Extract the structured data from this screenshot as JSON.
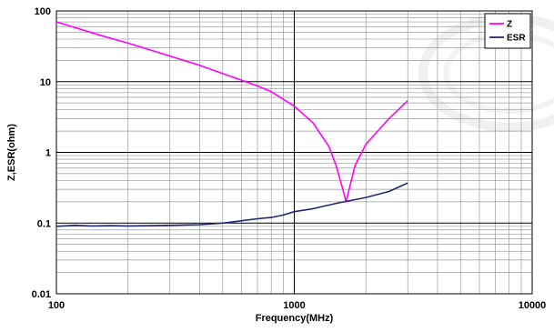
{
  "chart_data": {
    "type": "line",
    "title": "",
    "xlabel": "Frequency(MHz)",
    "ylabel": "Z,ESR(ohm)",
    "x_scale": "log",
    "y_scale": "log",
    "xlim": [
      100,
      10000
    ],
    "ylim": [
      0.01,
      100
    ],
    "x_ticks": [
      "100",
      "1000",
      "10000"
    ],
    "y_ticks": [
      "100",
      "10",
      "1",
      "0.1",
      "0.01"
    ],
    "grid": true,
    "legend": "top-right",
    "legend_entries": [
      "Z",
      "ESR"
    ],
    "series": [
      {
        "name": "Z",
        "color": "#ff00ff",
        "x": [
          100,
          150,
          200,
          300,
          400,
          500,
          600,
          700,
          800,
          1000,
          1200,
          1400,
          1500,
          1600,
          1650,
          1700,
          1800,
          2000,
          2500,
          3000
        ],
        "y": [
          70,
          46,
          35,
          23,
          17,
          13,
          10.5,
          8.7,
          7.2,
          4.5,
          2.6,
          1.2,
          0.65,
          0.3,
          0.2,
          0.3,
          0.65,
          1.3,
          3,
          5.4
        ]
      },
      {
        "name": "ESR",
        "color": "#1f2a6e",
        "x": [
          100,
          120,
          140,
          170,
          200,
          250,
          300,
          400,
          500,
          600,
          700,
          800,
          900,
          1000,
          1200,
          1500,
          2000,
          2500,
          3000
        ],
        "y": [
          0.09,
          0.093,
          0.091,
          0.092,
          0.091,
          0.092,
          0.093,
          0.095,
          0.1,
          0.108,
          0.115,
          0.12,
          0.13,
          0.145,
          0.16,
          0.19,
          0.23,
          0.28,
          0.37
        ]
      }
    ]
  }
}
